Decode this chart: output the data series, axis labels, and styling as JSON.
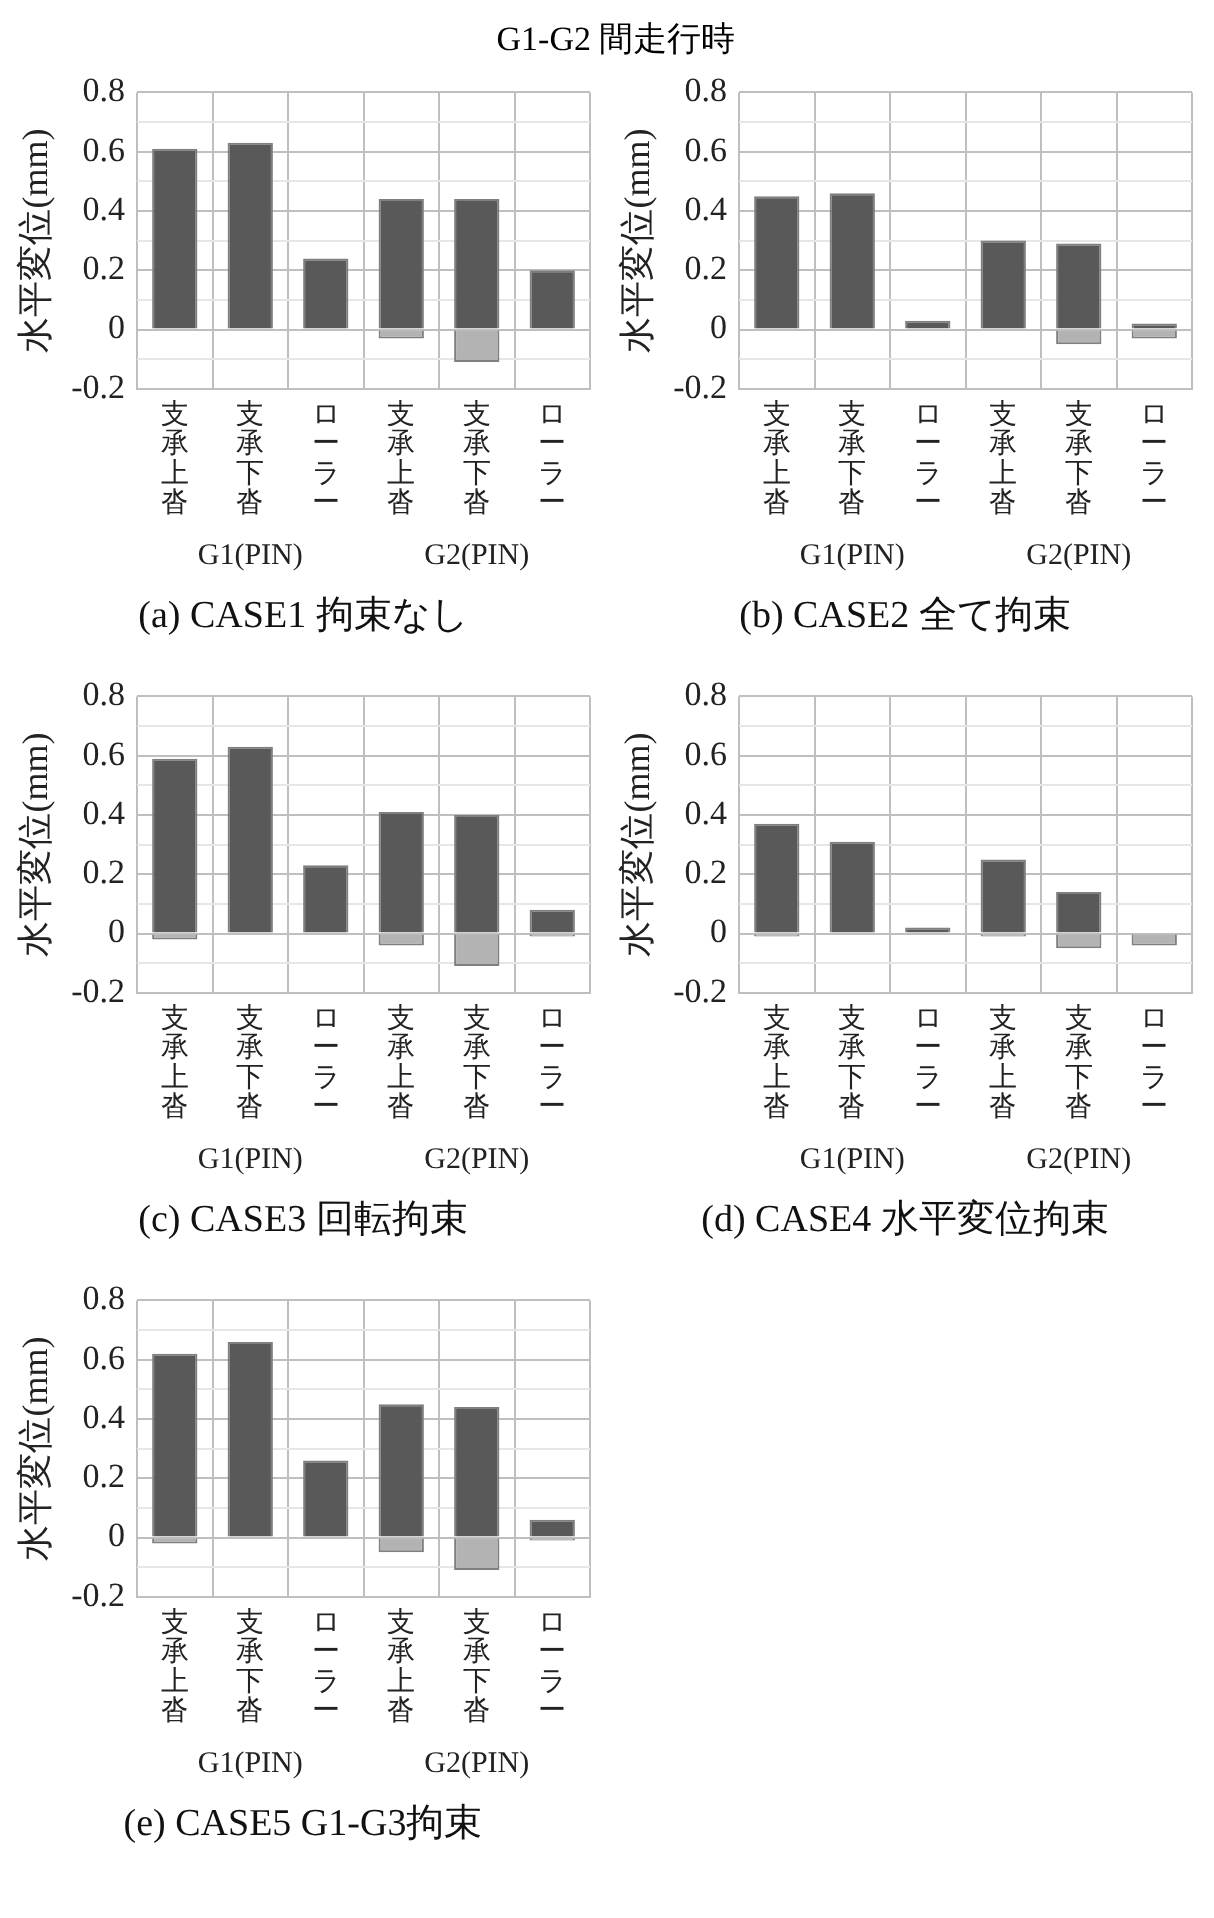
{
  "chart_data": [
    {
      "type": "bar",
      "subtitle": "G1-G2 間走行時",
      "title": "(a) CASE1 拘束なし",
      "ylabel": "水平変位(mm)",
      "categories": [
        "支承上沓",
        "支承下沓",
        "ローラー",
        "支承上沓",
        "支承下沓",
        "ローラー"
      ],
      "annotations": [
        "G1(PIN)",
        "G2(PIN)"
      ],
      "ylim": [
        -0.2,
        0.8
      ],
      "yticks": [
        -0.2,
        {
          "value": -0.1,
          "label": null
        },
        0,
        {
          "value": 0.1,
          "label": null
        },
        0.2,
        {
          "value": 0.3,
          "label": null
        },
        0.4,
        {
          "value": 0.5,
          "label": null
        },
        0.6,
        {
          "value": 0.7,
          "label": null
        },
        0.8
      ],
      "grid": true,
      "legend": false,
      "series": [
        {
          "color": "#595959",
          "values": [
            0.61,
            0.63,
            0.24,
            0.44,
            0.44,
            0.2
          ]
        },
        {
          "color": "#b3b3b3",
          "values": [
            null,
            null,
            null,
            -0.03,
            -0.11,
            null
          ]
        }
      ]
    },
    {
      "type": "bar",
      "title": "(b) CASE2 全て拘束",
      "ylabel": "水平変位(mm)",
      "categories": [
        "支承上沓",
        "支承下沓",
        "ローラー",
        "支承上沓",
        "支承下沓",
        "ローラー"
      ],
      "annotations": [
        "G1(PIN)",
        "G2(PIN)"
      ],
      "ylim": [
        -0.2,
        0.8
      ],
      "yticks": [
        -0.2,
        {
          "value": -0.1,
          "label": null
        },
        0,
        {
          "value": 0.1,
          "label": null
        },
        0.2,
        {
          "value": 0.3,
          "label": null
        },
        0.4,
        {
          "value": 0.5,
          "label": null
        },
        0.6,
        {
          "value": 0.7,
          "label": null
        },
        0.8
      ],
      "grid": true,
      "legend": false,
      "series": [
        {
          "color": "#595959",
          "values": [
            0.45,
            0.46,
            0.03,
            0.3,
            0.29,
            0.02
          ]
        },
        {
          "color": "#b3b3b3",
          "values": [
            null,
            null,
            null,
            null,
            -0.05,
            -0.03
          ]
        }
      ]
    },
    {
      "type": "bar",
      "title": "(c) CASE3 回転拘束",
      "ylabel": "水平変位(mm)",
      "categories": [
        "支承上沓",
        "支承下沓",
        "ローラー",
        "支承上沓",
        "支承下沓",
        "ローラー"
      ],
      "annotations": [
        "G1(PIN)",
        "G2(PIN)"
      ],
      "ylim": [
        -0.2,
        0.8
      ],
      "yticks": [
        -0.2,
        {
          "value": -0.1,
          "label": null
        },
        0,
        {
          "value": 0.1,
          "label": null
        },
        0.2,
        {
          "value": 0.3,
          "label": null
        },
        0.4,
        {
          "value": 0.5,
          "label": null
        },
        0.6,
        {
          "value": 0.7,
          "label": null
        },
        0.8
      ],
      "grid": true,
      "legend": false,
      "series": [
        {
          "color": "#595959",
          "values": [
            0.59,
            0.63,
            0.23,
            0.41,
            0.4,
            0.08
          ]
        },
        {
          "color": "#b3b3b3",
          "values": [
            -0.02,
            null,
            null,
            -0.04,
            -0.11,
            -0.01
          ]
        }
      ]
    },
    {
      "type": "bar",
      "title": "(d) CASE4 水平変位拘束",
      "ylabel": "水平変位(mm)",
      "categories": [
        "支承上沓",
        "支承下沓",
        "ローラー",
        "支承上沓",
        "支承下沓",
        "ローラー"
      ],
      "annotations": [
        "G1(PIN)",
        "G2(PIN)"
      ],
      "ylim": [
        -0.2,
        0.8
      ],
      "yticks": [
        -0.2,
        {
          "value": -0.1,
          "label": null
        },
        0,
        {
          "value": 0.1,
          "label": null
        },
        0.2,
        {
          "value": 0.3,
          "label": null
        },
        0.4,
        {
          "value": 0.5,
          "label": null
        },
        0.6,
        {
          "value": 0.7,
          "label": null
        },
        0.8
      ],
      "grid": true,
      "legend": false,
      "series": [
        {
          "color": "#595959",
          "values": [
            0.37,
            0.31,
            0.02,
            0.25,
            0.14,
            null
          ]
        },
        {
          "color": "#b3b3b3",
          "values": [
            -0.01,
            null,
            null,
            -0.01,
            -0.05,
            -0.04
          ]
        }
      ]
    },
    {
      "type": "bar",
      "title": "(e) CASE5 G1-G3拘束",
      "ylabel": "水平変位(mm)",
      "categories": [
        "支承上沓",
        "支承下沓",
        "ローラー",
        "支承上沓",
        "支承下沓",
        "ローラー"
      ],
      "annotations": [
        "G1(PIN)",
        "G2(PIN)"
      ],
      "ylim": [
        -0.2,
        0.8
      ],
      "yticks": [
        -0.2,
        {
          "value": -0.1,
          "label": null
        },
        0,
        {
          "value": 0.1,
          "label": null
        },
        0.2,
        {
          "value": 0.3,
          "label": null
        },
        0.4,
        {
          "value": 0.5,
          "label": null
        },
        0.6,
        {
          "value": 0.7,
          "label": null
        },
        0.8
      ],
      "grid": true,
      "legend": false,
      "series": [
        {
          "color": "#595959",
          "values": [
            0.62,
            0.66,
            0.26,
            0.45,
            0.44,
            0.06
          ]
        },
        {
          "color": "#b3b3b3",
          "values": [
            -0.02,
            null,
            null,
            -0.05,
            -0.11,
            -0.01
          ]
        }
      ]
    }
  ]
}
